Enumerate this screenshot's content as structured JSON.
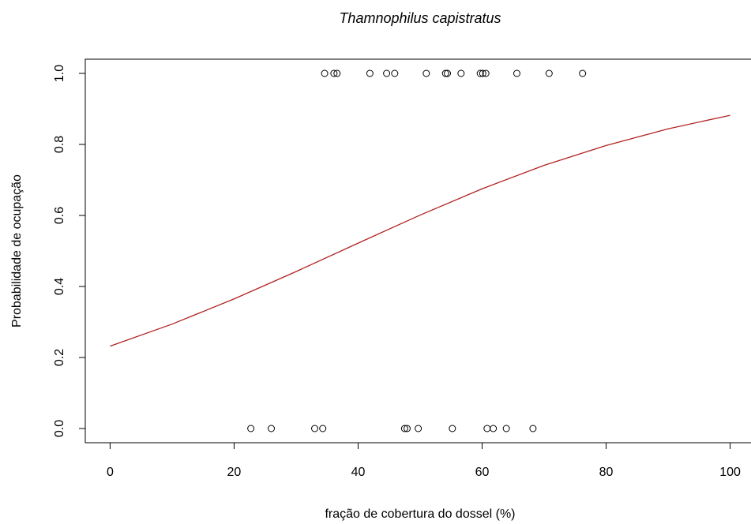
{
  "chart_data": {
    "type": "scatter",
    "title": "Thamnophilus capistratus",
    "x_label": "fração de cobertura do dossel (%)",
    "y_label": "Probabilidade de ocupação",
    "points": {
      "color": "#000000",
      "x": [
        34.6,
        36.1,
        36.6,
        41.9,
        44.6,
        45.9,
        51.0,
        54.1,
        54.4,
        56.6,
        59.7,
        60.1,
        60.6,
        65.6,
        70.8,
        76.2,
        22.7,
        26.0,
        33.0,
        34.3,
        47.5,
        47.9,
        49.7,
        55.2,
        60.8,
        61.8,
        63.9,
        68.2
      ],
      "values": [
        1,
        1,
        1,
        1,
        1,
        1,
        1,
        1,
        1,
        1,
        1,
        1,
        1,
        1,
        1,
        1,
        0,
        0,
        0,
        0,
        0,
        0,
        0,
        0,
        0,
        0,
        0,
        0
      ]
    },
    "curve": {
      "color": "#b22222",
      "x": [
        0,
        10,
        20,
        30,
        40,
        50,
        60,
        70,
        80,
        90,
        100
      ],
      "values": [
        0.232,
        0.294,
        0.365,
        0.442,
        0.522,
        0.601,
        0.675,
        0.741,
        0.797,
        0.844,
        0.882
      ]
    },
    "xlim": [
      -4,
      104
    ],
    "ylim": [
      -0.04,
      1.04
    ],
    "xticks": [
      0,
      20,
      40,
      60,
      80,
      100
    ],
    "yticks": [
      {
        "value": 0,
        "label": "0.0"
      },
      0.2,
      0.4,
      0.6,
      0.8,
      {
        "value": 1,
        "label": "1.0"
      }
    ]
  }
}
